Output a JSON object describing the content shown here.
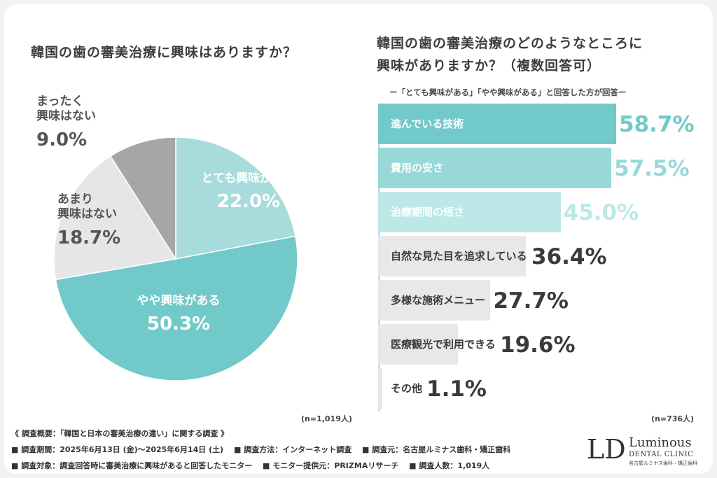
{
  "chart_data": [
    {
      "type": "pie",
      "title": "韓国の歯の審美治療に興味はありますか？",
      "n_label": "(n=1,019人)",
      "slices": [
        {
          "name_lines": [
            "とても興味がある"
          ],
          "value": 22.0,
          "pct_text": "22.0%",
          "color": "#a8dcdc",
          "text_color": "#ffffff"
        },
        {
          "name_lines": [
            "やや興味がある"
          ],
          "value": 50.3,
          "pct_text": "50.3%",
          "color": "#72c9c9",
          "text_color": "#ffffff"
        },
        {
          "name_lines": [
            "あまり",
            "興味はない"
          ],
          "value": 18.7,
          "pct_text": "18.7%",
          "color": "#e6e6e6",
          "text_color": "#555555"
        },
        {
          "name_lines": [
            "まったく",
            "興味はない"
          ],
          "value": 9.0,
          "pct_text": "9.0%",
          "color": "#a6a6a6",
          "text_color": "#555555"
        }
      ]
    },
    {
      "type": "bar",
      "orientation": "horizontal",
      "title_lines": [
        "韓国の歯の審美治療のどのようなところに",
        "興味がありますか？（複数回答可）"
      ],
      "subtitle": "ー「とても興味がある」「やや興味がある」と回答した方が回答ー",
      "n_label": "(n=736人)",
      "xlim": [
        0,
        70
      ],
      "categories": [
        "進んでいる技術",
        "費用の安さ",
        "治療期間の短さ",
        "自然な見た目を追求している",
        "多様な施術メニュー",
        "医療観光で利用できる",
        "その他"
      ],
      "values": [
        58.7,
        57.5,
        45.0,
        36.4,
        27.7,
        19.6,
        1.1
      ],
      "value_labels": [
        "58.7%",
        "57.5%",
        "45.0%",
        "36.4%",
        "27.7%",
        "19.6%",
        "1.1%"
      ],
      "bar_colors": [
        "#72c9c9",
        "#99d8d8",
        "#bde8e8",
        "#e8e8e8",
        "#e8e8e8",
        "#e8e8e8",
        "#e8e8e8"
      ],
      "label_colors": [
        "#ffffff",
        "#ffffff",
        "#ffffff",
        "#3a3a3a",
        "#3a3a3a",
        "#3a3a3a",
        "#3a3a3a"
      ],
      "value_colors": [
        "#72c9c9",
        "#99d8d8",
        "#bde8e8",
        "#3a3a3a",
        "#3a3a3a",
        "#3a3a3a",
        "#3a3a3a"
      ]
    }
  ],
  "footer": {
    "line1": "《 調査概要：「韓国と日本の審美治療の違い」に関する調査 》",
    "line2": "■ 調査期間：2025年6月13日 (金)〜2025年6月14日 (土)　 ■ 調査方法：インターネット調査　 ■ 調査元：名古屋ルミナス歯科・矯正歯科",
    "line3": "■ 調査対象：調査回答時に審美治療に興味があると回答したモニター　 ■ モニター提供元：PRIZMAリサーチ　 ■ 調査人数：1,019人"
  },
  "logo": {
    "mark": "LD",
    "name": "Luminous",
    "sub": "DENTAL CLINIC",
    "sub2": "名古屋ルミナス歯科・矯正歯科"
  }
}
